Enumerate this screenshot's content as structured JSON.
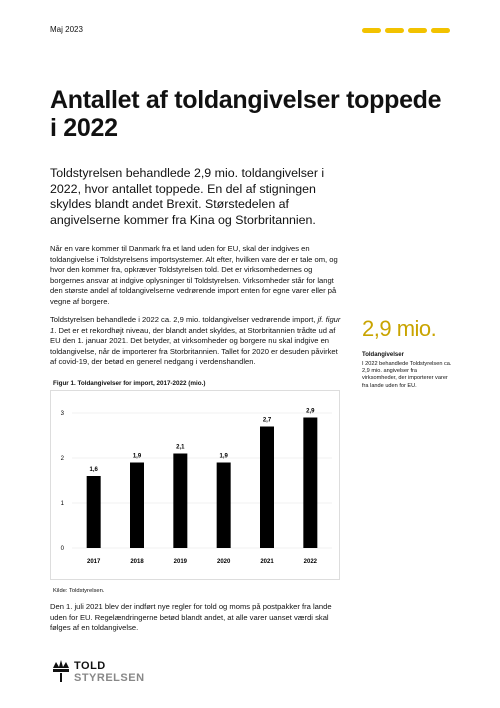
{
  "header": {
    "date": "Maj 2023",
    "title": "Antallet af toldangivelser toppede i 2022"
  },
  "lead": "Toldstyrelsen behandlede 2,9 mio. toldangivelser i 2022, hvor antallet toppede. En del af stigningen skyldes blandt andet Brexit. Størstedelen af angivelserne kommer fra Kina og Storbritannien.",
  "body": {
    "paragraph1": "Når en vare kommer til Danmark fra et land uden for EU, skal der indgives en toldangivelse i Toldstyrelsens importsystemer. Alt efter, hvilken vare der er tale om, og hvor den kommer fra, opkræver Toldstyrelsen told. Det er virksomhedernes og borgernes ansvar at indgive oplysninger til Toldstyrelsen. Virksomheder står for langt den største andel af toldangivelserne vedrørende import enten for egne varer eller på vegne af borgere.",
    "paragraph2": [
      "Toldstyrelsen behandlede i 2022 ca. 2,9 mio. toldangivelser vedrørende import, ",
      "jf. figur 1",
      ". Det er et rekordhøjt niveau, der blandt andet skyldes, at Storbritannien trådte ud af EU den 1. januar 2021. Det betyder, at virksomheder og borgere nu skal indgive en toldangivelse, når de importerer fra Storbritannien. Tallet for 2020 er desuden påvirket af covid-19, der betød en generel nedgang i verdenshandlen."
    ],
    "paragraph3": "Den 1. juli 2021 blev der indført nye regler for told og moms på postpakker fra lande uden for EU. Regelændringerne betød blandt andet, at alle varer uanset værdi skal følges af en toldangivelse."
  },
  "sidebar": {
    "highlight": "2,9 mio.",
    "title": "Toldangivelser",
    "text": "I 2022 behandlede Toldstyrelsen ca. 2,9 mio. angivelser fra virksomheder, der importerer varer fra lande uden for EU."
  },
  "chart_data": {
    "type": "bar",
    "title": "Figur 1. Toldangivelser for import, 2017-2022 (mio.)",
    "categories": [
      "2017",
      "2018",
      "2019",
      "2020",
      "2021",
      "2022"
    ],
    "values": [
      1.6,
      1.9,
      2.1,
      1.9,
      2.7,
      2.9
    ],
    "value_labels": [
      "1,6",
      "1,9",
      "2,1",
      "1,9",
      "2,7",
      "2,9"
    ],
    "color": "#000000",
    "ylim": [
      0,
      3
    ],
    "yticks": [
      0,
      1,
      2,
      3
    ],
    "grid": true,
    "source": "Kilde: Toldstyrelsen."
  },
  "logo": {
    "line1": "TOLD",
    "line2": "STYRELSEN"
  }
}
